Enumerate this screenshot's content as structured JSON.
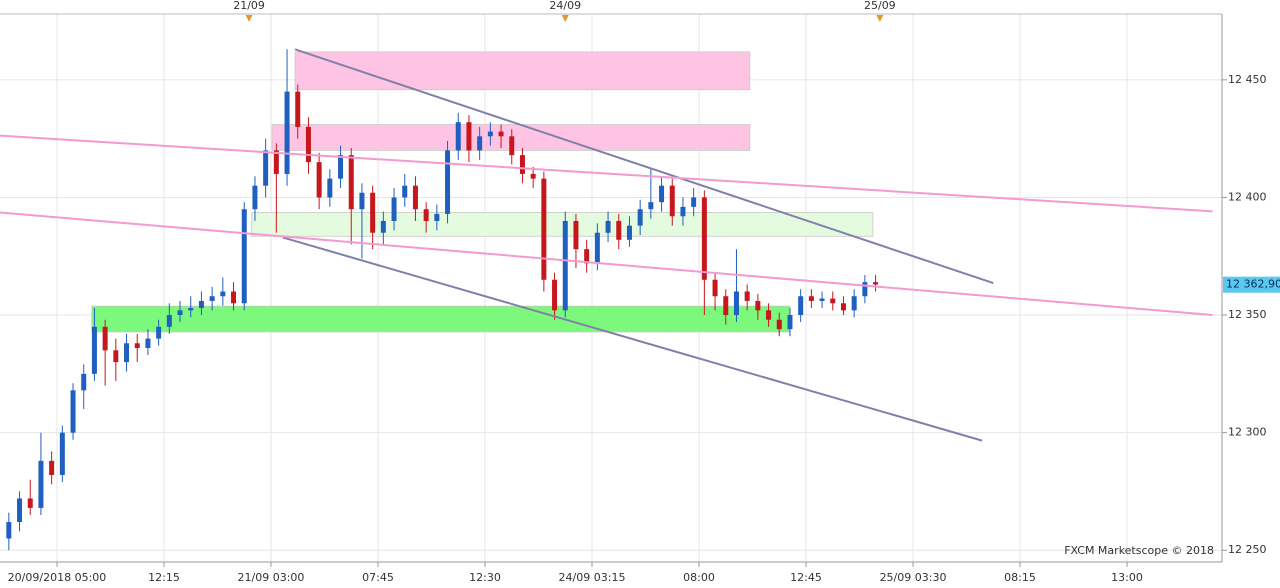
{
  "chart_data": {
    "type": "candlestick",
    "xlim": [
      -10.65,
      217.75
    ],
    "xticks": [
      {
        "value": 0,
        "label": "20/09/2018 05:00"
      },
      {
        "value": 20,
        "label": "12:15"
      },
      {
        "value": 40,
        "label": "21/09 03:00"
      },
      {
        "value": 60,
        "label": "07:45"
      },
      {
        "value": 80,
        "label": "12:30"
      },
      {
        "value": 100,
        "label": "24/09 03:15"
      },
      {
        "value": 120,
        "label": "08:00"
      },
      {
        "value": 140,
        "label": "12:45"
      },
      {
        "value": 160,
        "label": "25/09 03:30"
      },
      {
        "value": 180,
        "label": "08:15"
      },
      {
        "value": 200,
        "label": "13:00"
      }
    ],
    "ylim": [
      12245,
      12478
    ],
    "yticks": [
      {
        "value": 12250,
        "label": "12 250"
      },
      {
        "value": 12300,
        "label": "12 300"
      },
      {
        "value": 12350,
        "label": "12 350"
      },
      {
        "value": 12400,
        "label": "12 400"
      },
      {
        "value": 12450,
        "label": "12 450"
      }
    ],
    "grid": true,
    "up_color": "#1f5fbf",
    "down_color": "#c8161d",
    "x": [
      -9,
      -7,
      -5,
      -3,
      -1,
      1,
      3,
      5,
      7,
      9,
      11,
      13,
      15,
      17,
      19,
      21,
      23,
      25,
      27,
      29,
      31,
      33,
      35,
      37,
      39,
      41,
      43,
      45,
      47,
      49,
      51,
      53,
      55,
      57,
      59,
      61,
      63,
      65,
      67,
      69,
      71,
      73,
      75,
      77,
      79,
      81,
      83,
      85,
      87,
      89,
      91,
      93,
      95,
      97,
      99,
      101,
      103,
      105,
      107,
      109,
      111,
      113,
      115,
      117,
      119,
      121,
      123,
      125,
      127,
      129,
      131,
      133,
      135,
      137,
      139,
      141,
      143,
      145,
      147,
      149,
      151,
      153
    ],
    "ohlc": [
      [
        12255,
        12266,
        12250,
        12262
      ],
      [
        12262,
        12275,
        12258,
        12272
      ],
      [
        12272,
        12280,
        12265,
        12268
      ],
      [
        12268,
        12300,
        12265,
        12288
      ],
      [
        12288,
        12292,
        12278,
        12282
      ],
      [
        12282,
        12303,
        12279,
        12300
      ],
      [
        12300,
        12321,
        12297,
        12318
      ],
      [
        12318,
        12329,
        12310,
        12325
      ],
      [
        12325,
        12353,
        12322,
        12345
      ],
      [
        12345,
        12348,
        12320,
        12335
      ],
      [
        12335,
        12340,
        12322,
        12330
      ],
      [
        12330,
        12342,
        12326,
        12338
      ],
      [
        12338,
        12342,
        12330,
        12336
      ],
      [
        12336,
        12344,
        12333,
        12340
      ],
      [
        12340,
        12348,
        12337,
        12345
      ],
      [
        12345,
        12355,
        12342,
        12350
      ],
      [
        12350,
        12356,
        12347,
        12352
      ],
      [
        12352,
        12358,
        12349,
        12353
      ],
      [
        12353,
        12360,
        12350,
        12356
      ],
      [
        12356,
        12362,
        12352,
        12358
      ],
      [
        12358,
        12366,
        12354,
        12360
      ],
      [
        12360,
        12364,
        12352,
        12355
      ],
      [
        12355,
        12398,
        12352,
        12395
      ],
      [
        12395,
        12409,
        12390,
        12405
      ],
      [
        12405,
        12425,
        12400,
        12420
      ],
      [
        12420,
        12423,
        12385,
        12410
      ],
      [
        12410,
        12463,
        12405,
        12445
      ],
      [
        12445,
        12448,
        12425,
        12430
      ],
      [
        12430,
        12434,
        12410,
        12415
      ],
      [
        12415,
        12419,
        12395,
        12400
      ],
      [
        12400,
        12412,
        12396,
        12408
      ],
      [
        12408,
        12422,
        12404,
        12418
      ],
      [
        12418,
        12421,
        12380,
        12395
      ],
      [
        12395,
        12406,
        12374,
        12402
      ],
      [
        12402,
        12405,
        12378,
        12385
      ],
      [
        12385,
        12394,
        12380,
        12390
      ],
      [
        12390,
        12404,
        12386,
        12400
      ],
      [
        12400,
        12410,
        12396,
        12405
      ],
      [
        12405,
        12409,
        12390,
        12395
      ],
      [
        12395,
        12398,
        12385,
        12390
      ],
      [
        12390,
        12397,
        12386,
        12393
      ],
      [
        12393,
        12424,
        12389,
        12420
      ],
      [
        12420,
        12436,
        12416,
        12432
      ],
      [
        12432,
        12435,
        12415,
        12420
      ],
      [
        12420,
        12430,
        12416,
        12426
      ],
      [
        12426,
        12432,
        12422,
        12428
      ],
      [
        12428,
        12431,
        12421,
        12426
      ],
      [
        12426,
        12429,
        12414,
        12418
      ],
      [
        12418,
        12421,
        12406,
        12410
      ],
      [
        12410,
        12413,
        12404,
        12408
      ],
      [
        12408,
        12411,
        12360,
        12365
      ],
      [
        12365,
        12368,
        12348,
        12352
      ],
      [
        12352,
        12394,
        12349,
        12390
      ],
      [
        12390,
        12393,
        12370,
        12378
      ],
      [
        12378,
        12382,
        12368,
        12372
      ],
      [
        12372,
        12389,
        12369,
        12385
      ],
      [
        12385,
        12394,
        12381,
        12390
      ],
      [
        12390,
        12393,
        12378,
        12382
      ],
      [
        12382,
        12392,
        12379,
        12388
      ],
      [
        12388,
        12399,
        12384,
        12395
      ],
      [
        12395,
        12412,
        12391,
        12398
      ],
      [
        12398,
        12409,
        12394,
        12405
      ],
      [
        12405,
        12408,
        12388,
        12392
      ],
      [
        12392,
        12400,
        12388,
        12396
      ],
      [
        12396,
        12404,
        12392,
        12400
      ],
      [
        12400,
        12403,
        12350,
        12365
      ],
      [
        12365,
        12368,
        12352,
        12358
      ],
      [
        12358,
        12361,
        12346,
        12350
      ],
      [
        12350,
        12378,
        12347,
        12360
      ],
      [
        12360,
        12363,
        12352,
        12356
      ],
      [
        12356,
        12359,
        12348,
        12352
      ],
      [
        12352,
        12355,
        12345,
        12348
      ],
      [
        12348,
        12351,
        12341,
        12344
      ],
      [
        12344,
        12353,
        12341,
        12350
      ],
      [
        12350,
        12361,
        12347,
        12358
      ],
      [
        12358,
        12361,
        12353,
        12356
      ],
      [
        12356,
        12360,
        12353,
        12357
      ],
      [
        12357,
        12360,
        12352,
        12355
      ],
      [
        12355,
        12358,
        12350,
        12352
      ],
      [
        12352,
        12361,
        12349,
        12358
      ],
      [
        12358,
        12367,
        12355,
        12364
      ],
      [
        12364,
        12367,
        12360,
        12363
      ]
    ],
    "zones": [
      {
        "x": [
          44.5,
          129.5
        ],
        "y": [
          12445.8,
          12461.9
        ],
        "color": "#ffc4e4"
      },
      {
        "x": [
          40.2,
          129.5
        ],
        "y": [
          12420,
          12431
        ],
        "color": "#ffc4e4"
      },
      {
        "x": [
          36.4,
          152.5
        ],
        "y": [
          12383.5,
          12393.6
        ],
        "color": "#e4fbe0"
      },
      {
        "x": [
          6.5,
          137
        ],
        "y": [
          12342.8,
          12353.8
        ],
        "color": "#7cf87c"
      }
    ],
    "trend_lines": [
      {
        "x": [
          44.5,
          175
        ],
        "y": [
          12463,
          12363.6
        ],
        "color": "#8080a8"
      },
      {
        "x": [
          42.2,
          172.9
        ],
        "y": [
          12383,
          12296.6
        ],
        "color": "#8080a8"
      },
      {
        "x": [
          -10.65,
          216
        ],
        "y": [
          12426.3,
          12394.1
        ],
        "color": "#f39ad0"
      },
      {
        "x": [
          -10.65,
          216
        ],
        "y": [
          12393.6,
          12350
        ],
        "color": "#f39ad0"
      }
    ],
    "top_markers": [
      {
        "x": 35.9,
        "label": "21/09"
      },
      {
        "x": 95,
        "label": "24/09"
      },
      {
        "x": 153.8,
        "label": "25/09"
      }
    ],
    "current_price": {
      "value": 12362.9,
      "label": "12 362,90"
    },
    "watermark": "FXCM Marketscope © 2018"
  }
}
